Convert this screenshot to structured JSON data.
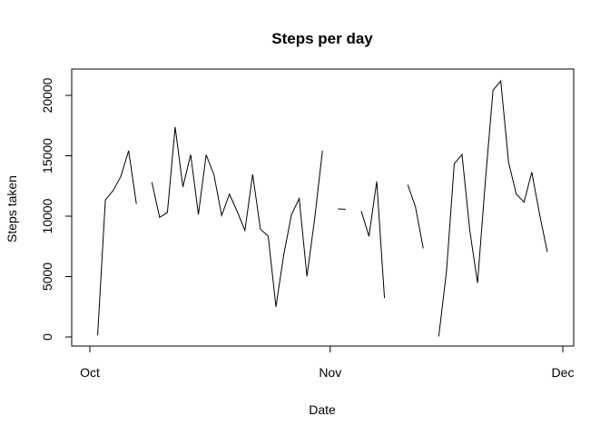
{
  "chart_data": {
    "type": "line",
    "title": "Steps per day",
    "xlabel": "Date",
    "ylabel": "Steps taken",
    "x_ticks": [
      {
        "date": "2012-10-01",
        "label": "Oct"
      },
      {
        "date": "2012-11-01",
        "label": "Nov"
      },
      {
        "date": "2012-12-01",
        "label": "Dec"
      }
    ],
    "y_ticks": [
      0,
      5000,
      10000,
      15000,
      20000
    ],
    "xlim": [
      "2012-10-01",
      "2012-11-30"
    ],
    "ylim": [
      0,
      21194
    ],
    "grid": false,
    "series": [
      {
        "color": "#000000",
        "points": [
          {
            "date": "2012-10-01",
            "steps": null
          },
          {
            "date": "2012-10-02",
            "steps": 126
          },
          {
            "date": "2012-10-03",
            "steps": 11352
          },
          {
            "date": "2012-10-04",
            "steps": 12116
          },
          {
            "date": "2012-10-05",
            "steps": 13294
          },
          {
            "date": "2012-10-06",
            "steps": 15420
          },
          {
            "date": "2012-10-07",
            "steps": 11015
          },
          {
            "date": "2012-10-08",
            "steps": null
          },
          {
            "date": "2012-10-09",
            "steps": 12811
          },
          {
            "date": "2012-10-10",
            "steps": 9900
          },
          {
            "date": "2012-10-11",
            "steps": 10304
          },
          {
            "date": "2012-10-12",
            "steps": 17382
          },
          {
            "date": "2012-10-13",
            "steps": 12426
          },
          {
            "date": "2012-10-14",
            "steps": 15098
          },
          {
            "date": "2012-10-15",
            "steps": 10139
          },
          {
            "date": "2012-10-16",
            "steps": 15084
          },
          {
            "date": "2012-10-17",
            "steps": 13452
          },
          {
            "date": "2012-10-18",
            "steps": 10056
          },
          {
            "date": "2012-10-19",
            "steps": 11829
          },
          {
            "date": "2012-10-20",
            "steps": 10395
          },
          {
            "date": "2012-10-21",
            "steps": 8821
          },
          {
            "date": "2012-10-22",
            "steps": 13460
          },
          {
            "date": "2012-10-23",
            "steps": 8918
          },
          {
            "date": "2012-10-24",
            "steps": 8355
          },
          {
            "date": "2012-10-25",
            "steps": 2492
          },
          {
            "date": "2012-10-26",
            "steps": 6778
          },
          {
            "date": "2012-10-27",
            "steps": 10119
          },
          {
            "date": "2012-10-28",
            "steps": 11458
          },
          {
            "date": "2012-10-29",
            "steps": 5018
          },
          {
            "date": "2012-10-30",
            "steps": 9819
          },
          {
            "date": "2012-10-31",
            "steps": 15414
          },
          {
            "date": "2012-11-01",
            "steps": null
          },
          {
            "date": "2012-11-02",
            "steps": 10600
          },
          {
            "date": "2012-11-03",
            "steps": 10571
          },
          {
            "date": "2012-11-04",
            "steps": null
          },
          {
            "date": "2012-11-05",
            "steps": 10439
          },
          {
            "date": "2012-11-06",
            "steps": 8334
          },
          {
            "date": "2012-11-07",
            "steps": 12883
          },
          {
            "date": "2012-11-08",
            "steps": 3219
          },
          {
            "date": "2012-11-09",
            "steps": null
          },
          {
            "date": "2012-11-10",
            "steps": null
          },
          {
            "date": "2012-11-11",
            "steps": 12608
          },
          {
            "date": "2012-11-12",
            "steps": 10765
          },
          {
            "date": "2012-11-13",
            "steps": 7336
          },
          {
            "date": "2012-11-14",
            "steps": null
          },
          {
            "date": "2012-11-15",
            "steps": 41
          },
          {
            "date": "2012-11-16",
            "steps": 5441
          },
          {
            "date": "2012-11-17",
            "steps": 14339
          },
          {
            "date": "2012-11-18",
            "steps": 15110
          },
          {
            "date": "2012-11-19",
            "steps": 8841
          },
          {
            "date": "2012-11-20",
            "steps": 4472
          },
          {
            "date": "2012-11-21",
            "steps": 12787
          },
          {
            "date": "2012-11-22",
            "steps": 20427
          },
          {
            "date": "2012-11-23",
            "steps": 21194
          },
          {
            "date": "2012-11-24",
            "steps": 14478
          },
          {
            "date": "2012-11-25",
            "steps": 11834
          },
          {
            "date": "2012-11-26",
            "steps": 11162
          },
          {
            "date": "2012-11-27",
            "steps": 13646
          },
          {
            "date": "2012-11-28",
            "steps": 10183
          },
          {
            "date": "2012-11-29",
            "steps": 7047
          },
          {
            "date": "2012-11-30",
            "steps": null
          }
        ]
      }
    ]
  }
}
